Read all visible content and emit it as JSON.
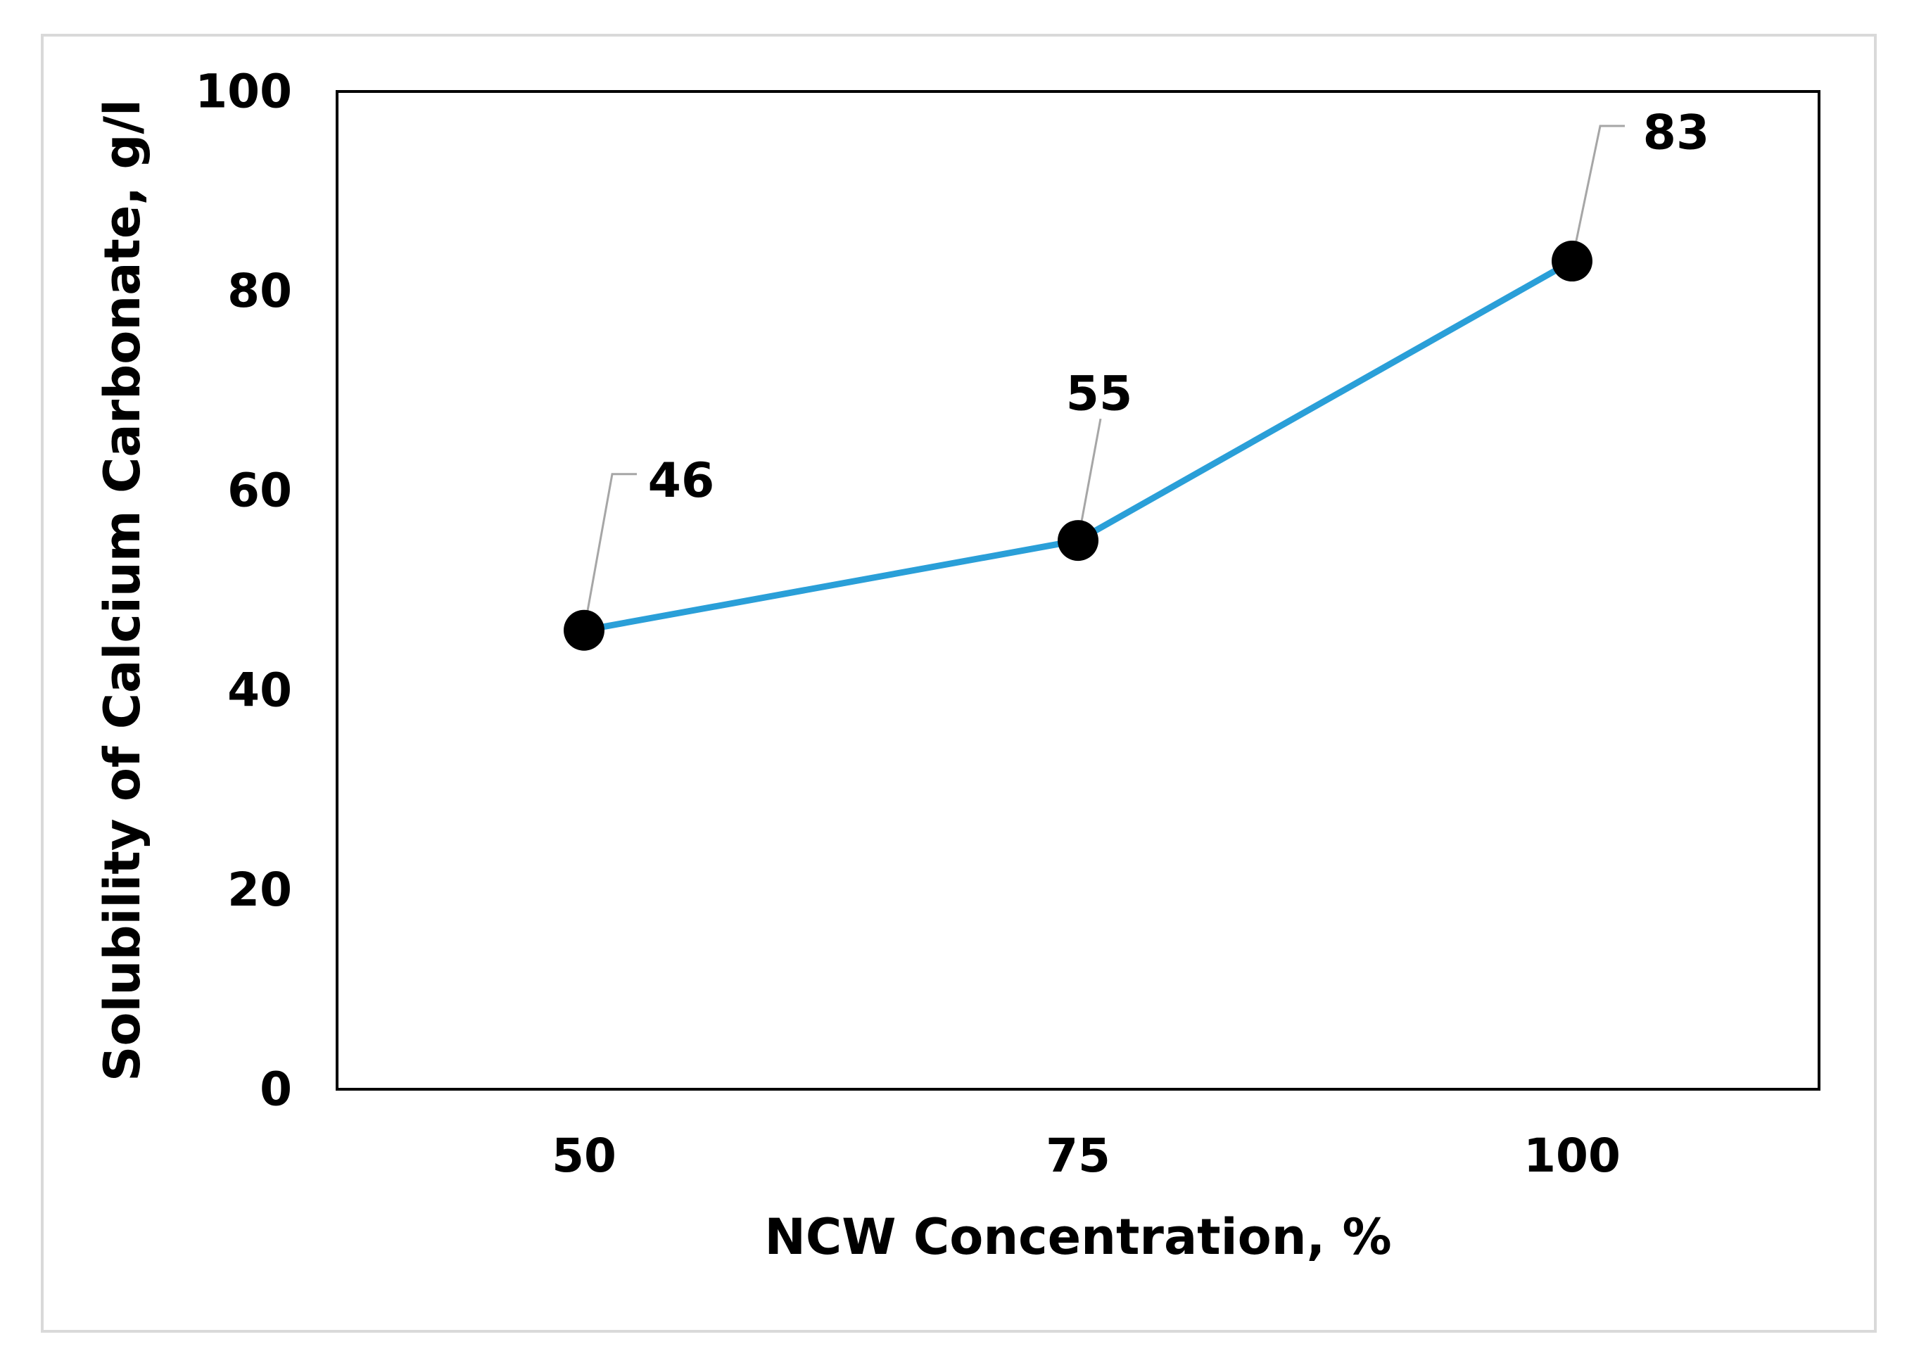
{
  "chart_data": {
    "type": "line",
    "x": [
      50,
      75,
      100
    ],
    "y": [
      46,
      55,
      83
    ],
    "data_labels": [
      "46",
      "55",
      "83"
    ],
    "xlabel": "NCW Concentration, %",
    "ylabel": "Solubility of Calcium Carbonate, g/l",
    "xlim": [
      37.5,
      112.5
    ],
    "ylim": [
      0,
      100
    ],
    "x_ticks": [
      "50",
      "75",
      "100"
    ],
    "y_ticks": [
      "0",
      "20",
      "40",
      "60",
      "80",
      "100"
    ],
    "grid": false,
    "legend": "none",
    "colors": {
      "line": "#2a9fd8",
      "marker": "#000000",
      "leader": "#a6a6a6",
      "frame": "#d9d9d9"
    }
  }
}
